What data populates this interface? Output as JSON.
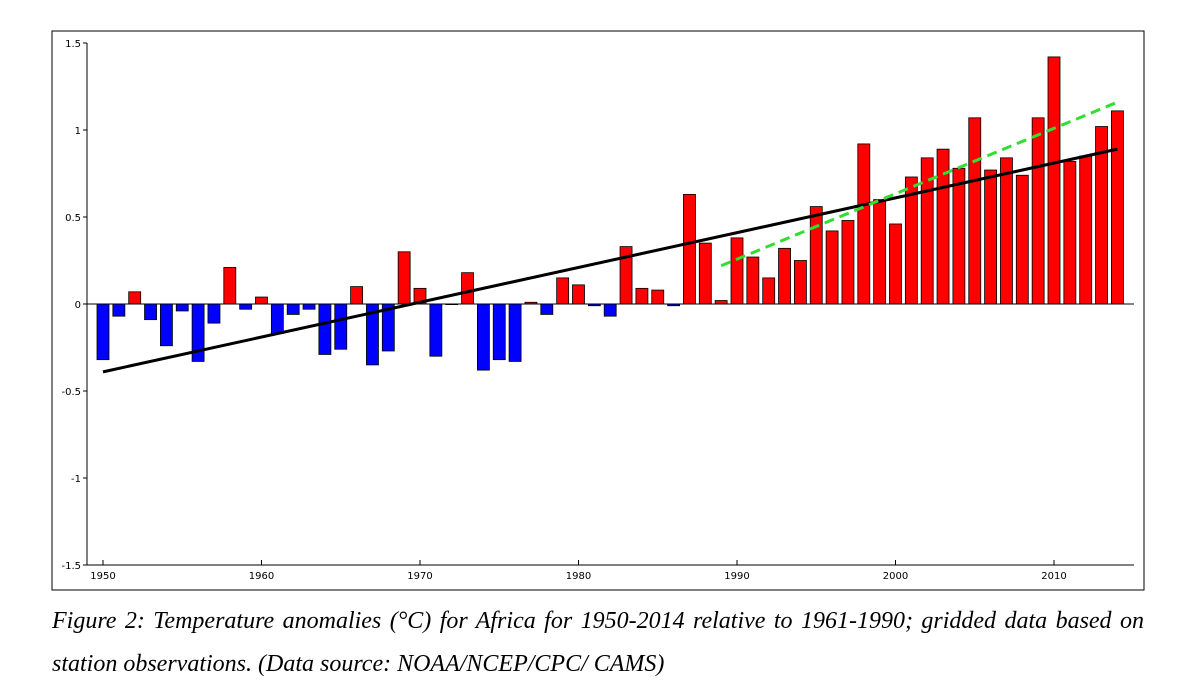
{
  "caption": "Figure 2: Temperature anomalies (°C) for Africa for 1950-2014 relative to 1961-1990; gridded data based on station observations. (Data source: NOAA/NCEP/CPC/ CAMS)",
  "colors": {
    "positive_bar": "#ff0000",
    "negative_bar": "#0000ff",
    "trend_full": "#000000",
    "trend_recent": "#33dd33",
    "axis": "#000000"
  },
  "chart_data": {
    "type": "bar",
    "title": "",
    "xlabel": "",
    "ylabel": "",
    "xlim": [
      1949,
      2015
    ],
    "ylim": [
      -1.5,
      1.5
    ],
    "grid": false,
    "x_ticks": [
      1950,
      1960,
      1970,
      1980,
      1990,
      2000,
      2010
    ],
    "y_ticks": [
      1.5,
      1,
      0.5,
      0,
      -0.5,
      -1,
      -1.5
    ],
    "y_tick_labels": [
      "1.5",
      "1",
      "0.5",
      "0",
      "-0.5",
      "-1",
      "-1.5"
    ],
    "categories": [
      1950,
      1951,
      1952,
      1953,
      1954,
      1955,
      1956,
      1957,
      1958,
      1959,
      1960,
      1961,
      1962,
      1963,
      1964,
      1965,
      1966,
      1967,
      1968,
      1969,
      1970,
      1971,
      1972,
      1973,
      1974,
      1975,
      1976,
      1977,
      1978,
      1979,
      1980,
      1981,
      1982,
      1983,
      1984,
      1985,
      1986,
      1987,
      1988,
      1989,
      1990,
      1991,
      1992,
      1993,
      1994,
      1995,
      1996,
      1997,
      1998,
      1999,
      2000,
      2001,
      2002,
      2003,
      2004,
      2005,
      2006,
      2007,
      2008,
      2009,
      2010,
      2011,
      2012,
      2013,
      2014
    ],
    "values": [
      -0.32,
      -0.07,
      0.07,
      -0.09,
      -0.24,
      -0.04,
      -0.33,
      -0.11,
      0.21,
      -0.03,
      0.04,
      -0.17,
      -0.06,
      -0.03,
      -0.29,
      -0.26,
      0.1,
      -0.35,
      -0.27,
      0.3,
      0.09,
      -0.3,
      0.0,
      0.18,
      -0.38,
      -0.32,
      -0.33,
      0.01,
      -0.06,
      0.15,
      0.11,
      -0.01,
      -0.07,
      0.33,
      0.09,
      0.08,
      -0.01,
      0.63,
      0.35,
      0.02,
      0.38,
      0.27,
      0.15,
      0.32,
      0.25,
      0.56,
      0.42,
      0.48,
      0.92,
      0.6,
      0.46,
      0.73,
      0.84,
      0.89,
      0.78,
      1.07,
      0.77,
      0.84,
      0.74,
      1.07,
      1.42,
      0.82,
      0.85,
      1.02,
      1.11
    ],
    "trend_lines": [
      {
        "x": [
          1950,
          2014
        ],
        "y": [
          -0.39,
          0.89
        ]
      },
      {
        "x": [
          1989,
          2014
        ],
        "y": [
          0.22,
          1.16
        ]
      }
    ]
  }
}
